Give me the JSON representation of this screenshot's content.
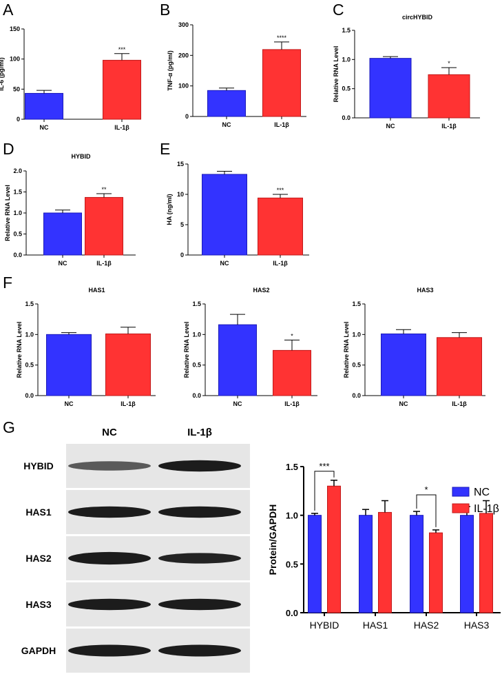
{
  "colors": {
    "nc": "#3333ff",
    "nc_edge": "#1a1ab8",
    "il": "#ff3333",
    "il_edge": "#c01818",
    "axis": "#000000",
    "blot_bg": "#e6e6e6",
    "band": "#111111"
  },
  "panels": {
    "A": "A",
    "B": "B",
    "C": "C",
    "D": "D",
    "E": "E",
    "F": "F",
    "G": "G"
  },
  "chart_data": [
    {
      "id": "A",
      "type": "bar",
      "title": "",
      "ylabel": "IL-6 (pg/ml)",
      "categories": [
        "NC",
        "IL-1β"
      ],
      "values": [
        43,
        98
      ],
      "errors": [
        5,
        11
      ],
      "ylim": [
        0,
        150
      ],
      "yticks": [
        0,
        50,
        100,
        150
      ],
      "ytick_labels": [
        "0",
        "50",
        "100",
        "150"
      ],
      "significance": "***"
    },
    {
      "id": "B",
      "type": "bar",
      "title": "",
      "ylabel": "TNF-α (pg/ml)",
      "categories": [
        "NC",
        "IL-1β"
      ],
      "values": [
        85,
        219
      ],
      "errors": [
        8,
        25
      ],
      "ylim": [
        0,
        300
      ],
      "yticks": [
        0,
        100,
        200,
        300
      ],
      "ytick_labels": [
        "0",
        "100",
        "200",
        "300"
      ],
      "significance": "****"
    },
    {
      "id": "C",
      "type": "bar",
      "title": "circHYBID",
      "ylabel": "Relative RNA Level",
      "categories": [
        "NC",
        "IL-1β"
      ],
      "values": [
        1.02,
        0.74
      ],
      "errors": [
        0.03,
        0.12
      ],
      "ylim": [
        0,
        1.5
      ],
      "yticks": [
        0,
        0.5,
        1.0,
        1.5
      ],
      "ytick_labels": [
        "0.0",
        "0.5",
        "1.0",
        "1.5"
      ],
      "significance": "*"
    },
    {
      "id": "D",
      "type": "bar",
      "title": "HYBID",
      "ylabel": "Relative RNA Level",
      "categories": [
        "NC",
        "IL-1β"
      ],
      "values": [
        1.0,
        1.37
      ],
      "errors": [
        0.07,
        0.09
      ],
      "ylim": [
        0,
        2.0
      ],
      "yticks": [
        0,
        0.5,
        1.0,
        1.5,
        2.0
      ],
      "ytick_labels": [
        "0.0",
        "0.5",
        "1.0",
        "1.5",
        "2.0"
      ],
      "significance": "**"
    },
    {
      "id": "E",
      "type": "bar",
      "title": "",
      "ylabel": "HA (ng/ml)",
      "categories": [
        "NC",
        "IL-1β"
      ],
      "values": [
        13.3,
        9.4
      ],
      "errors": [
        0.5,
        0.6
      ],
      "ylim": [
        0,
        15
      ],
      "yticks": [
        0,
        5,
        10,
        15
      ],
      "ytick_labels": [
        "0",
        "5",
        "10",
        "15"
      ],
      "significance": "***"
    },
    {
      "id": "F1",
      "type": "bar",
      "title": "HAS1",
      "ylabel": "Relative RNA Level",
      "categories": [
        "NC",
        "IL-1β"
      ],
      "values": [
        1.0,
        1.01
      ],
      "errors": [
        0.03,
        0.11
      ],
      "ylim": [
        0,
        1.5
      ],
      "yticks": [
        0,
        0.5,
        1.0,
        1.5
      ],
      "ytick_labels": [
        "0.0",
        "0.5",
        "1.0",
        "1.5"
      ],
      "significance": ""
    },
    {
      "id": "F2",
      "type": "bar",
      "title": "HAS2",
      "ylabel": "Relative RNA Level",
      "categories": [
        "NC",
        "IL-1β"
      ],
      "values": [
        1.16,
        0.74
      ],
      "errors": [
        0.17,
        0.17
      ],
      "ylim": [
        0,
        1.5
      ],
      "yticks": [
        0,
        0.5,
        1.0,
        1.5
      ],
      "ytick_labels": [
        "0.0",
        "0.5",
        "1.0",
        "1.5"
      ],
      "significance": "*"
    },
    {
      "id": "F3",
      "type": "bar",
      "title": "HAS3",
      "ylabel": "Relative RNA Level",
      "categories": [
        "NC",
        "IL-1β"
      ],
      "values": [
        1.01,
        0.95
      ],
      "errors": [
        0.07,
        0.08
      ],
      "ylim": [
        0,
        1.5
      ],
      "yticks": [
        0,
        0.5,
        1.0,
        1.5
      ],
      "ytick_labels": [
        "0.0",
        "0.5",
        "1.0",
        "1.5"
      ],
      "significance": ""
    },
    {
      "id": "G",
      "type": "bar",
      "title": "",
      "ylabel": "Protein/GAPDH",
      "categories": [
        "HYBID",
        "HAS1",
        "HAS2",
        "HAS3"
      ],
      "series": [
        {
          "name": "NC",
          "values": [
            1.0,
            1.0,
            1.0,
            1.0
          ],
          "errors": [
            0.02,
            0.06,
            0.04,
            0.09
          ]
        },
        {
          "name": "IL-1β",
          "values": [
            1.3,
            1.03,
            0.82,
            1.02
          ],
          "errors": [
            0.06,
            0.12,
            0.03,
            0.13
          ]
        }
      ],
      "ylim": [
        0,
        1.5
      ],
      "yticks": [
        0,
        0.5,
        1.0,
        1.5
      ],
      "ytick_labels": [
        "0.0",
        "0.5",
        "1.0",
        "1.5"
      ],
      "significance": [
        {
          "category": "HYBID",
          "label": "***"
        },
        {
          "category": "HAS2",
          "label": "*"
        }
      ],
      "legend": "top-right"
    }
  ],
  "western_blot": {
    "headers": [
      "NC",
      "IL-1β"
    ],
    "rows": [
      {
        "label": "HYBID",
        "intensity": [
          0.55,
          1.0
        ],
        "thickness": [
          0.45,
          0.7
        ]
      },
      {
        "label": "HAS1",
        "intensity": [
          1.0,
          1.0
        ],
        "thickness": [
          0.7,
          0.7
        ]
      },
      {
        "label": "HAS2",
        "intensity": [
          1.0,
          0.95
        ],
        "thickness": [
          0.85,
          0.6
        ]
      },
      {
        "label": "HAS3",
        "intensity": [
          1.0,
          1.0
        ],
        "thickness": [
          0.7,
          0.7
        ]
      },
      {
        "label": "GAPDH",
        "intensity": [
          1.0,
          1.0
        ],
        "thickness": [
          0.75,
          0.75
        ]
      }
    ]
  }
}
